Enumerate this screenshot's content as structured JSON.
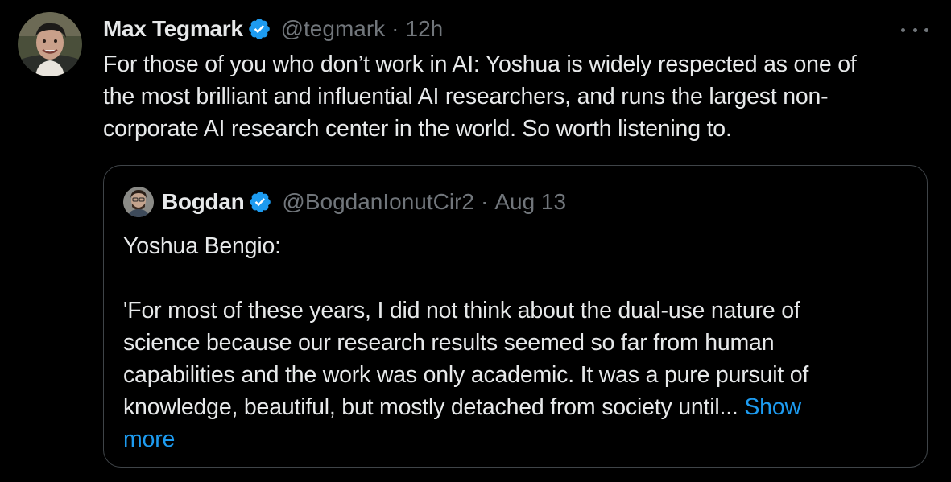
{
  "tweet": {
    "author": {
      "display_name": "Max Tegmark",
      "handle": "@tegmark",
      "verified": true,
      "avatar_icon": "profile-photo-icon"
    },
    "separator": "·",
    "time": "12h",
    "more_icon": "more-options-icon",
    "text_lines": [
      "For those of you who don’t work in AI: Yoshua is widely respected as one of",
      "the most brilliant and influential AI researchers, and runs the largest non-",
      "corporate AI research center in the world. So worth listening to."
    ]
  },
  "quoted_tweet": {
    "author": {
      "display_name": "Bogdan",
      "handle": "@BogdanIonutCir2",
      "verified": true,
      "avatar_icon": "profile-photo-icon"
    },
    "separator": "·",
    "time": "Aug 13",
    "text_lines": [
      "Yoshua Bengio:",
      "",
      "'For most of these years, I did not think about the dual-use nature of",
      "science because our research results seemed so far from human",
      "capabilities and the work was only academic. It was a pure pursuit of"
    ],
    "last_line_prefix": "knowledge, beautiful, but mostly detached from society until... ",
    "show_more_word1": "Show",
    "show_more_word2": "more"
  },
  "colors": {
    "background": "#000000",
    "text_primary": "#e7e9ea",
    "text_secondary": "#71767b",
    "link": "#1d9bf0",
    "verified_badge": "#1d9bf0",
    "border": "#3f4448"
  }
}
